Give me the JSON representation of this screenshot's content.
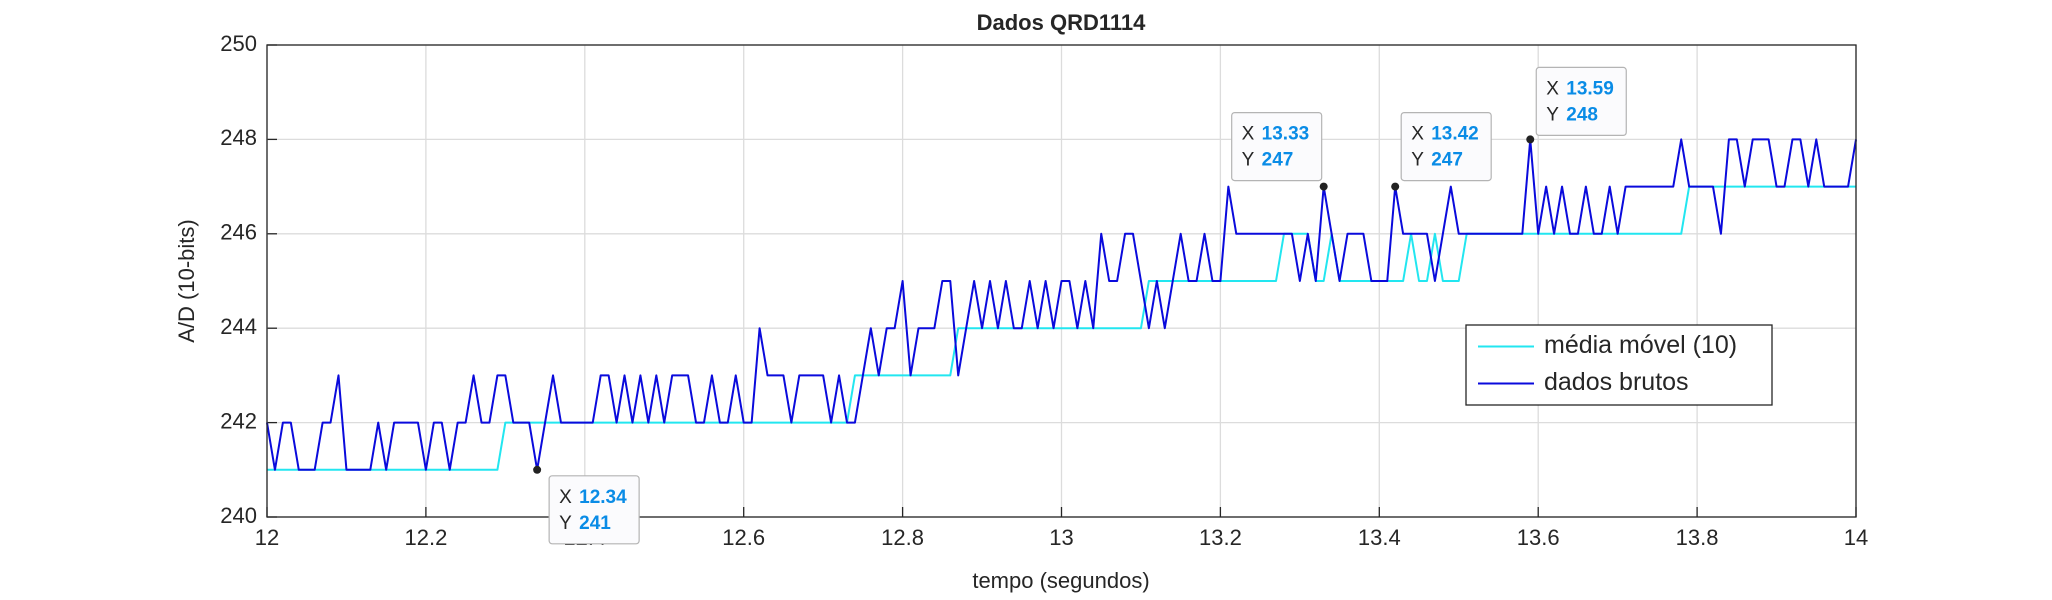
{
  "chart_data": {
    "type": "line",
    "title": "Dados QRD1114",
    "x_label": "tempo (segundos)",
    "y_label": "A/D (10-bits)",
    "x": [
      12,
      12.01,
      12.02,
      12.03,
      12.04,
      12.05,
      12.06,
      12.07,
      12.08,
      12.09,
      12.1,
      12.11,
      12.12,
      12.13,
      12.14,
      12.15,
      12.16,
      12.17,
      12.18,
      12.19,
      12.2,
      12.21,
      12.22,
      12.23,
      12.24,
      12.25,
      12.26,
      12.27,
      12.28,
      12.29,
      12.3,
      12.31,
      12.32,
      12.33,
      12.34,
      12.35,
      12.36,
      12.37,
      12.38,
      12.39,
      12.4,
      12.41,
      12.42,
      12.43,
      12.44,
      12.45,
      12.46,
      12.47,
      12.48,
      12.49,
      12.5,
      12.51,
      12.52,
      12.53,
      12.54,
      12.55,
      12.56,
      12.57,
      12.58,
      12.59,
      12.6,
      12.61,
      12.62,
      12.63,
      12.64,
      12.65,
      12.66,
      12.67,
      12.68,
      12.69,
      12.7,
      12.71,
      12.72,
      12.73,
      12.74,
      12.75,
      12.76,
      12.77,
      12.78,
      12.79,
      12.8,
      12.81,
      12.82,
      12.83,
      12.84,
      12.85,
      12.86,
      12.87,
      12.88,
      12.89,
      12.9,
      12.91,
      12.92,
      12.93,
      12.94,
      12.95,
      12.96,
      12.97,
      12.98,
      12.99,
      13,
      13.01,
      13.02,
      13.03,
      13.04,
      13.05,
      13.06,
      13.07,
      13.08,
      13.09,
      13.1,
      13.11,
      13.12,
      13.13,
      13.14,
      13.15,
      13.16,
      13.17,
      13.18,
      13.19,
      13.2,
      13.21,
      13.22,
      13.23,
      13.24,
      13.25,
      13.26,
      13.27,
      13.28,
      13.29,
      13.3,
      13.31,
      13.32,
      13.33,
      13.34,
      13.35,
      13.36,
      13.37,
      13.38,
      13.39,
      13.4,
      13.41,
      13.42,
      13.43,
      13.44,
      13.45,
      13.46,
      13.47,
      13.48,
      13.49,
      13.5,
      13.51,
      13.52,
      13.53,
      13.54,
      13.55,
      13.56,
      13.57,
      13.58,
      13.59,
      13.6,
      13.61,
      13.62,
      13.63,
      13.64,
      13.65,
      13.66,
      13.67,
      13.68,
      13.69,
      13.7,
      13.71,
      13.72,
      13.73,
      13.74,
      13.75,
      13.76,
      13.77,
      13.78,
      13.79,
      13.8,
      13.81,
      13.82,
      13.83,
      13.84,
      13.85,
      13.86,
      13.87,
      13.88,
      13.89,
      13.9,
      13.91,
      13.92,
      13.93,
      13.94,
      13.95,
      13.96,
      13.97,
      13.98,
      13.99,
      14
    ],
    "series": [
      {
        "name": "média móvel (10)",
        "color": "#22e6f0",
        "values": [
          241,
          241,
          241,
          241,
          241,
          241,
          241,
          241,
          241,
          241,
          241,
          241,
          241,
          241,
          241,
          241,
          241,
          241,
          241,
          241,
          241,
          241,
          241,
          241,
          241,
          241,
          241,
          241,
          241,
          241,
          242,
          242,
          242,
          242,
          242,
          242,
          242,
          242,
          242,
          242,
          242,
          242,
          242,
          242,
          242,
          242,
          242,
          242,
          242,
          242,
          242,
          242,
          242,
          242,
          242,
          242,
          242,
          242,
          242,
          242,
          242,
          242,
          242,
          242,
          242,
          242,
          242,
          242,
          242,
          242,
          242,
          242,
          242,
          242,
          243,
          243,
          243,
          243,
          243,
          243,
          243,
          243,
          243,
          243,
          243,
          243,
          243,
          244,
          244,
          244,
          244,
          244,
          244,
          244,
          244,
          244,
          244,
          244,
          244,
          244,
          244,
          244,
          244,
          244,
          244,
          244,
          244,
          244,
          244,
          244,
          244,
          245,
          245,
          245,
          245,
          245,
          245,
          245,
          245,
          245,
          245,
          245,
          245,
          245,
          245,
          245,
          245,
          245,
          246,
          246,
          246,
          246,
          245,
          245,
          246,
          245,
          245,
          245,
          245,
          245,
          245,
          245,
          245,
          245,
          246,
          245,
          245,
          246,
          245,
          245,
          245,
          246,
          246,
          246,
          246,
          246,
          246,
          246,
          246,
          246,
          246,
          246,
          246,
          246,
          246,
          246,
          246,
          246,
          246,
          246,
          246,
          246,
          246,
          246,
          246,
          246,
          246,
          246,
          246,
          247,
          247,
          247,
          247,
          247,
          247,
          247,
          247,
          247,
          247,
          247,
          247,
          247,
          247,
          247,
          247,
          247,
          247,
          247,
          247,
          247,
          247
        ]
      },
      {
        "name": "dados brutos",
        "color": "#0a0adc",
        "values": [
          242,
          241,
          242,
          242,
          241,
          241,
          241,
          242,
          242,
          243,
          241,
          241,
          241,
          241,
          242,
          241,
          242,
          242,
          242,
          242,
          241,
          242,
          242,
          241,
          242,
          242,
          243,
          242,
          242,
          243,
          243,
          242,
          242,
          242,
          241,
          242,
          243,
          242,
          242,
          242,
          242,
          242,
          243,
          243,
          242,
          243,
          242,
          243,
          242,
          243,
          242,
          243,
          243,
          243,
          242,
          242,
          243,
          242,
          242,
          243,
          242,
          242,
          244,
          243,
          243,
          243,
          242,
          243,
          243,
          243,
          243,
          242,
          243,
          242,
          242,
          243,
          244,
          243,
          244,
          244,
          245,
          243,
          244,
          244,
          244,
          245,
          245,
          243,
          244,
          245,
          244,
          245,
          244,
          245,
          244,
          244,
          245,
          244,
          245,
          244,
          245,
          245,
          244,
          245,
          244,
          246,
          245,
          245,
          246,
          246,
          245,
          244,
          245,
          244,
          245,
          246,
          245,
          245,
          246,
          245,
          245,
          247,
          246,
          246,
          246,
          246,
          246,
          246,
          246,
          246,
          245,
          246,
          245,
          247,
          246,
          245,
          246,
          246,
          246,
          245,
          245,
          245,
          247,
          246,
          246,
          246,
          246,
          245,
          246,
          247,
          246,
          246,
          246,
          246,
          246,
          246,
          246,
          246,
          246,
          248,
          246,
          247,
          246,
          247,
          246,
          246,
          247,
          246,
          246,
          247,
          246,
          247,
          247,
          247,
          247,
          247,
          247,
          247,
          248,
          247,
          247,
          247,
          247,
          246,
          248,
          248,
          247,
          248,
          248,
          248,
          247,
          247,
          248,
          248,
          247,
          248,
          247,
          247,
          247,
          247,
          248
        ]
      }
    ],
    "xlim": [
      12,
      14
    ],
    "ylim": [
      240,
      250
    ],
    "xticks": [
      12,
      12.2,
      12.4,
      12.6,
      12.8,
      13,
      13.2,
      13.4,
      13.6,
      13.8,
      14
    ],
    "yticks": [
      240,
      242,
      244,
      246,
      248,
      250
    ],
    "grid": true,
    "legend": "east",
    "datatip_labels": [
      "X",
      "Y"
    ],
    "datatips": [
      {
        "x": 12.34,
        "y": 241
      },
      {
        "x": 13.33,
        "y": 247
      },
      {
        "x": 13.42,
        "y": 247
      },
      {
        "x": 13.59,
        "y": 248
      }
    ]
  }
}
